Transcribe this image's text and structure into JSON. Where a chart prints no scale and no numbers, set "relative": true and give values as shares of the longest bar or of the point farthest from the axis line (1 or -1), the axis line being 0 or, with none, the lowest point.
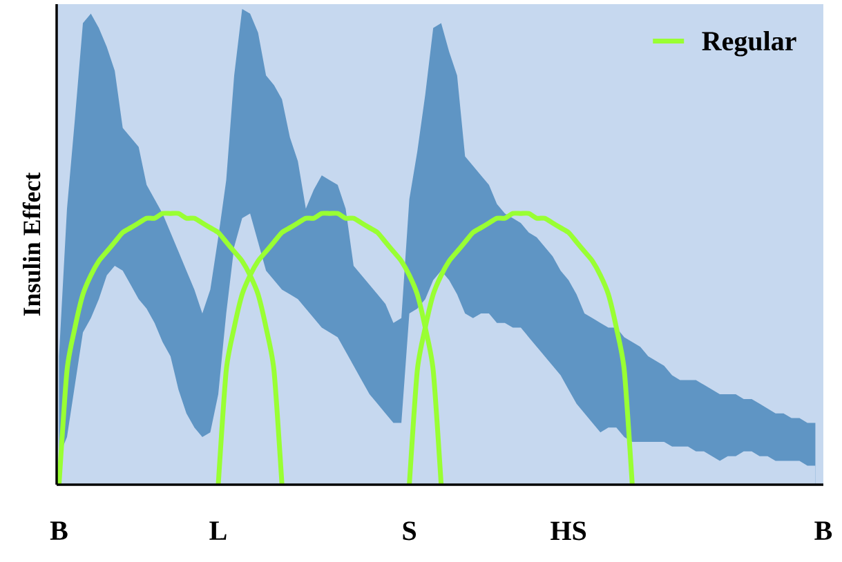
{
  "chart_data": {
    "type": "line",
    "relative": true,
    "ylabel": "Insulin Effect",
    "legend": "top right",
    "categories": [
      "B",
      null,
      null,
      null,
      null,
      null,
      null,
      null,
      null,
      null,
      null,
      null,
      null,
      null,
      null,
      null,
      null,
      null,
      null,
      null,
      "L",
      null,
      null,
      null,
      null,
      null,
      null,
      null,
      null,
      null,
      null,
      null,
      null,
      null,
      null,
      null,
      null,
      null,
      null,
      null,
      null,
      null,
      null,
      null,
      "S",
      null,
      null,
      null,
      null,
      null,
      null,
      null,
      null,
      null,
      null,
      null,
      null,
      null,
      null,
      null,
      null,
      null,
      null,
      null,
      "HS",
      null,
      null,
      null,
      null,
      null,
      null,
      null,
      null,
      null,
      null,
      null,
      null,
      null,
      null,
      null,
      null,
      null,
      null,
      null,
      null,
      null,
      null,
      null,
      null,
      null,
      null,
      null,
      null,
      null,
      null,
      null,
      "B"
    ],
    "series": [
      {
        "type": "area",
        "color": "#5f95c4",
        "values": [
          0.27,
          0.58,
          0.77,
          0.97,
          0.99,
          0.96,
          0.92,
          0.87,
          0.75,
          0.73,
          0.71,
          0.63,
          0.6,
          0.57,
          0.53,
          0.49,
          0.45,
          0.41,
          0.36,
          0.41,
          0.52,
          0.64,
          0.86,
          1,
          0.99,
          0.95,
          0.86,
          0.84,
          0.81,
          0.73,
          0.68,
          0.58,
          0.62,
          0.65,
          0.64,
          0.63,
          0.58,
          0.46,
          0.44,
          0.42,
          0.4,
          0.38,
          0.34,
          0.35,
          0.6,
          0.7,
          0.82,
          0.96,
          0.97,
          0.91,
          0.86,
          0.69,
          0.67,
          0.65,
          0.63,
          0.59,
          0.57,
          0.56,
          0.55,
          0.53,
          0.52,
          0.5,
          0.48,
          0.45,
          0.43,
          0.4,
          0.36,
          0.35,
          0.34,
          0.33,
          0.33,
          0.31,
          0.3,
          0.29,
          0.27,
          0.26,
          0.25,
          0.23,
          0.22,
          0.22,
          0.22,
          0.21,
          0.2,
          0.19,
          0.19,
          0.19,
          0.18,
          0.18,
          0.17,
          0.16,
          0.15,
          0.15,
          0.14,
          0.14,
          0.13,
          0.13,
          null
        ]
      },
      {
        "type": "area",
        "color": "#c6d8ef",
        "values": [
          0.06,
          0.1,
          0.21,
          0.32,
          0.35,
          0.39,
          0.44,
          0.46,
          0.45,
          0.42,
          0.39,
          0.37,
          0.34,
          0.3,
          0.27,
          0.2,
          0.15,
          0.12,
          0.1,
          0.11,
          0.19,
          0.36,
          0.5,
          0.56,
          0.57,
          0.51,
          0.45,
          0.43,
          0.41,
          0.4,
          0.39,
          0.37,
          0.35,
          0.33,
          0.32,
          0.31,
          0.28,
          0.25,
          0.22,
          0.19,
          0.17,
          0.15,
          0.13,
          0.13,
          0.36,
          0.37,
          0.39,
          0.43,
          0.45,
          0.43,
          0.4,
          0.36,
          0.35,
          0.36,
          0.36,
          0.34,
          0.34,
          0.33,
          0.33,
          0.31,
          0.29,
          0.27,
          0.25,
          0.23,
          0.2,
          0.17,
          0.15,
          0.13,
          0.11,
          0.12,
          0.12,
          0.1,
          0.09,
          0.09,
          0.09,
          0.09,
          0.09,
          0.08,
          0.08,
          0.08,
          0.07,
          0.07,
          0.06,
          0.05,
          0.06,
          0.06,
          0.07,
          0.07,
          0.06,
          0.06,
          0.05,
          0.05,
          0.05,
          0.05,
          0.04,
          0.04,
          null
        ]
      },
      {
        "name": "Regular",
        "color": "#99ff33",
        "values": [
          0,
          0.24,
          0.33,
          0.4,
          0.44,
          0.47,
          0.49,
          0.51,
          0.53,
          0.54,
          0.55,
          0.56,
          0.56,
          0.57,
          0.57,
          0.57,
          0.56,
          0.56,
          0.55,
          0.54,
          0.53,
          0.51,
          0.49,
          0.47,
          0.44,
          0.4,
          0.33,
          0.24,
          0,
          null,
          null,
          null,
          null,
          null,
          null,
          null,
          null,
          null,
          null,
          null,
          null,
          null,
          null,
          null,
          null,
          null,
          null,
          null,
          null,
          null,
          null,
          null,
          null,
          null,
          null,
          null,
          null,
          null,
          null,
          null,
          null,
          null,
          null,
          null,
          null,
          null,
          null,
          null,
          null,
          null,
          null,
          null,
          null,
          null,
          null,
          null,
          null,
          null,
          null,
          null,
          null,
          null,
          null,
          null,
          null,
          null,
          null,
          null,
          null,
          null,
          null,
          null,
          null,
          null,
          null,
          null,
          null
        ]
      },
      {
        "color": "#99ff33",
        "values": [
          null,
          null,
          null,
          null,
          null,
          null,
          null,
          null,
          null,
          null,
          null,
          null,
          null,
          null,
          null,
          null,
          null,
          null,
          null,
          null,
          0,
          0.24,
          0.33,
          0.4,
          0.44,
          0.47,
          0.49,
          0.51,
          0.53,
          0.54,
          0.55,
          0.56,
          0.56,
          0.57,
          0.57,
          0.57,
          0.56,
          0.56,
          0.55,
          0.54,
          0.53,
          0.51,
          0.49,
          0.47,
          0.44,
          0.4,
          0.33,
          0.24,
          0,
          null,
          null,
          null,
          null,
          null,
          null,
          null,
          null,
          null,
          null,
          null,
          null,
          null,
          null,
          null,
          null,
          null,
          null,
          null,
          null,
          null,
          null,
          null,
          null,
          null,
          null,
          null,
          null,
          null,
          null,
          null,
          null,
          null,
          null,
          null,
          null,
          null,
          null,
          null,
          null,
          null,
          null,
          null,
          null,
          null,
          null,
          null,
          null
        ]
      },
      {
        "color": "#99ff33",
        "values": [
          null,
          null,
          null,
          null,
          null,
          null,
          null,
          null,
          null,
          null,
          null,
          null,
          null,
          null,
          null,
          null,
          null,
          null,
          null,
          null,
          null,
          null,
          null,
          null,
          null,
          null,
          null,
          null,
          null,
          null,
          null,
          null,
          null,
          null,
          null,
          null,
          null,
          null,
          null,
          null,
          null,
          null,
          null,
          null,
          0,
          0.24,
          0.33,
          0.4,
          0.44,
          0.47,
          0.49,
          0.51,
          0.53,
          0.54,
          0.55,
          0.56,
          0.56,
          0.57,
          0.57,
          0.57,
          0.56,
          0.56,
          0.55,
          0.54,
          0.53,
          0.51,
          0.49,
          0.47,
          0.44,
          0.4,
          0.33,
          0.24,
          0,
          null,
          null,
          null,
          null,
          null,
          null,
          null,
          null,
          null,
          null,
          null,
          null,
          null,
          null,
          null,
          null,
          null,
          null,
          null,
          null,
          null,
          null,
          null,
          null
        ]
      }
    ]
  }
}
